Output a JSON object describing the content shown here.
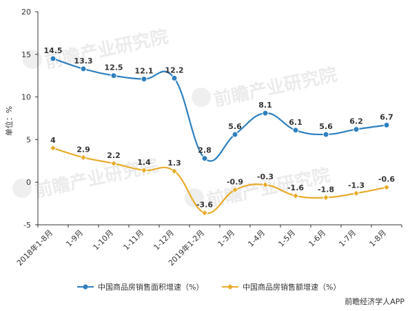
{
  "chart_data": {
    "type": "line",
    "ylabel": "单位：%",
    "ylim": [
      -5,
      20
    ],
    "yticks": [
      -5,
      0,
      5,
      10,
      15,
      20
    ],
    "categories": [
      "2018年1-8月",
      "1-9月",
      "1-10月",
      "1-11月",
      "1-12月",
      "2019年1-2月",
      "1-3月",
      "1-4月",
      "1-5月",
      "1-6月",
      "1-7月",
      "1-8月"
    ],
    "series": [
      {
        "name": "中国商品房销售面积增速（%）",
        "color": "#2e7fbf",
        "values": [
          14.5,
          13.3,
          12.5,
          12.1,
          12.2,
          2.8,
          5.6,
          8.1,
          6.1,
          5.6,
          6.2,
          6.7
        ],
        "labels": [
          "14.5",
          "13.3",
          "12.5",
          "12.1",
          "12.2",
          "2.8",
          "5.6",
          "8.1",
          "6.1",
          "5.6",
          "6.2",
          "6.7"
        ]
      },
      {
        "name": "中国商品房销售额增速（%）",
        "color": "#e8ac2a",
        "values": [
          4,
          2.9,
          2.2,
          1.4,
          1.3,
          -3.6,
          -0.9,
          -0.3,
          -1.6,
          -1.8,
          -1.3,
          -0.6
        ],
        "labels": [
          "4",
          "2.9",
          "2.2",
          "1.4",
          "1.3",
          "-3.6",
          "-0.9",
          "-0.3",
          "-1.6",
          "-1.8",
          "-1.3",
          "-0.6"
        ]
      }
    ],
    "grid": false,
    "legend": "bottom"
  },
  "credit": "前瞻经济学人APP",
  "watermark": "前瞻产业研究院"
}
